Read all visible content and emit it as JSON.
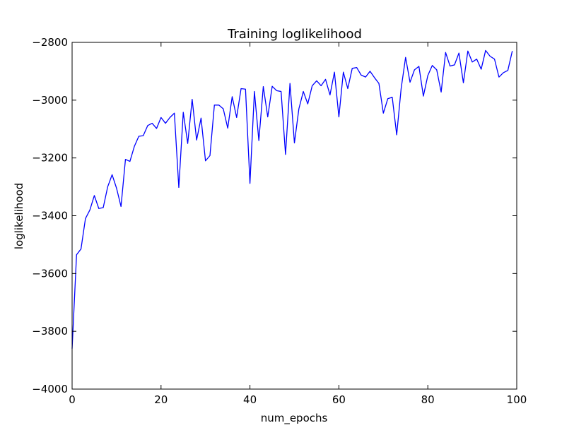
{
  "chart_data": {
    "type": "line",
    "title": "Training loglikelihood",
    "xlabel": "num_epochs",
    "ylabel": "loglikelihood",
    "xlim": [
      0,
      100
    ],
    "ylim": [
      -4000,
      -2800
    ],
    "xticks": [
      0,
      20,
      40,
      60,
      80,
      100
    ],
    "xtick_labels": [
      "0",
      "20",
      "40",
      "60",
      "80",
      "100"
    ],
    "yticks": [
      -4000,
      -3800,
      -3600,
      -3400,
      -3200,
      -3000,
      -2800
    ],
    "ytick_labels": [
      "−4000",
      "−3800",
      "−3600",
      "−3400",
      "−3200",
      "−3000",
      "−2800"
    ],
    "grid": false,
    "legend": "none",
    "line_color": "#0000ff",
    "x": [
      0,
      1,
      2,
      3,
      4,
      5,
      6,
      7,
      8,
      9,
      10,
      11,
      12,
      13,
      14,
      15,
      16,
      17,
      18,
      19,
      20,
      21,
      22,
      23,
      24,
      25,
      26,
      27,
      28,
      29,
      30,
      31,
      32,
      33,
      34,
      35,
      36,
      37,
      38,
      39,
      40,
      41,
      42,
      43,
      44,
      45,
      46,
      47,
      48,
      49,
      50,
      51,
      52,
      53,
      54,
      55,
      56,
      57,
      58,
      59,
      60,
      61,
      62,
      63,
      64,
      65,
      66,
      67,
      68,
      69,
      70,
      71,
      72,
      73,
      74,
      75,
      76,
      77,
      78,
      79,
      80,
      81,
      82,
      83,
      84,
      85,
      86,
      87,
      88,
      89,
      90,
      91,
      92,
      93,
      94,
      95,
      96,
      97,
      98,
      99
    ],
    "y": [
      -3860,
      -3535,
      -3515,
      -3410,
      -3380,
      -3330,
      -3375,
      -3372,
      -3300,
      -3258,
      -3305,
      -3368,
      -3205,
      -3212,
      -3160,
      -3125,
      -3123,
      -3088,
      -3080,
      -3098,
      -3060,
      -3080,
      -3060,
      -3045,
      -3302,
      -3042,
      -3150,
      -2997,
      -3138,
      -3062,
      -3210,
      -3192,
      -3017,
      -3017,
      -3030,
      -3097,
      -2988,
      -3060,
      -2960,
      -2962,
      -3288,
      -2970,
      -3140,
      -2953,
      -3058,
      -2952,
      -2967,
      -2970,
      -3188,
      -2942,
      -3148,
      -3030,
      -2970,
      -3013,
      -2950,
      -2933,
      -2950,
      -2928,
      -2982,
      -2903,
      -3058,
      -2903,
      -2960,
      -2890,
      -2887,
      -2913,
      -2920,
      -2900,
      -2922,
      -2942,
      -3045,
      -2995,
      -2990,
      -3120,
      -2960,
      -2852,
      -2938,
      -2895,
      -2883,
      -2986,
      -2915,
      -2880,
      -2895,
      -2972,
      -2835,
      -2882,
      -2878,
      -2837,
      -2940,
      -2830,
      -2868,
      -2858,
      -2893,
      -2828,
      -2848,
      -2858,
      -2920,
      -2905,
      -2897,
      -2830
    ]
  }
}
